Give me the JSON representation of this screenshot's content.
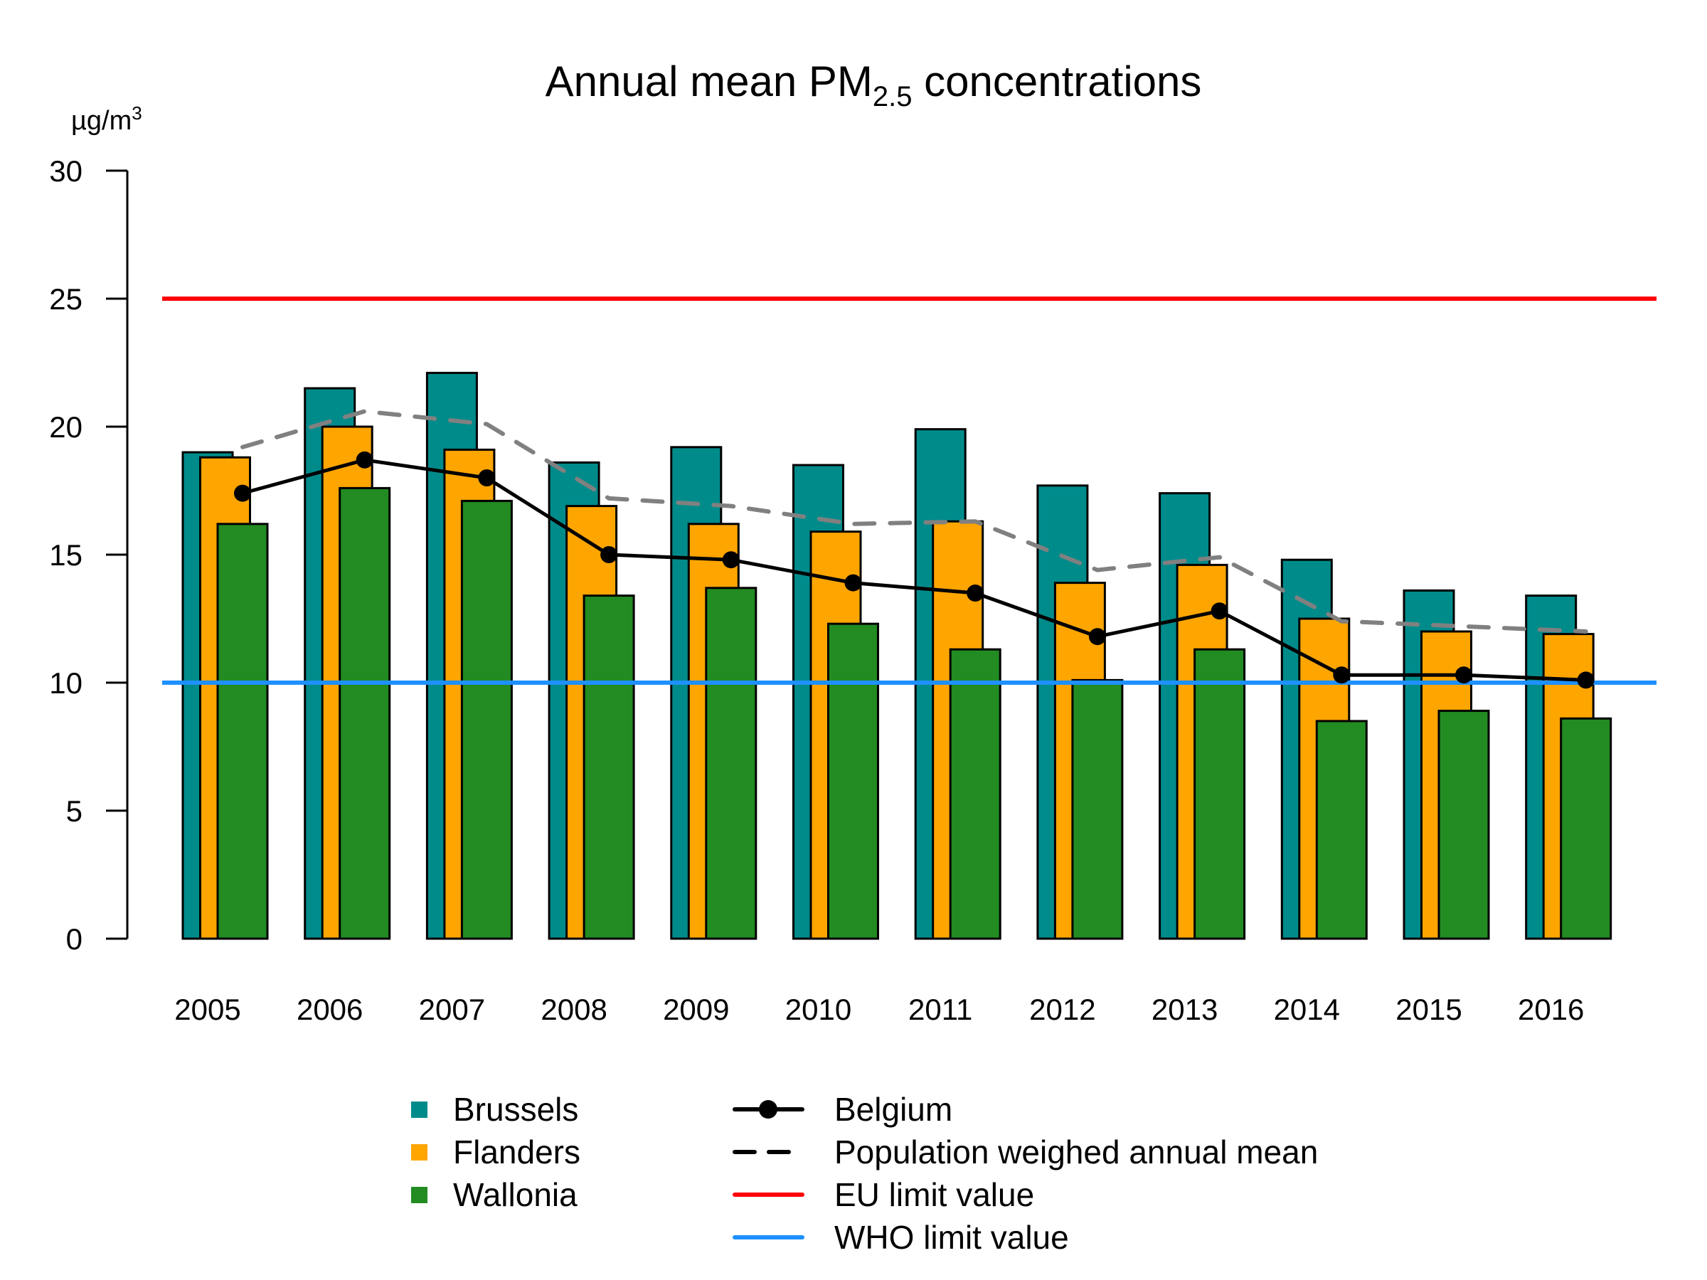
{
  "chart_data": {
    "type": "bar",
    "title": "Annual mean PM2.5 concentrations",
    "title_parts": {
      "main": "Annual mean PM",
      "subscript": "2.5",
      "rest": " concentrations"
    },
    "xlabel": "",
    "ylabel": "µg/m³",
    "ylabel_parts": {
      "base": "µg/m",
      "sup": "3"
    },
    "ylim": [
      0,
      30
    ],
    "yticks": [
      0,
      5,
      10,
      15,
      20,
      25,
      30
    ],
    "grid": false,
    "legend_position": "bottom",
    "categories": [
      "2005",
      "2006",
      "2007",
      "2008",
      "2009",
      "2010",
      "2011",
      "2012",
      "2013",
      "2014",
      "2015",
      "2016"
    ],
    "series": [
      {
        "name": "Brussels",
        "kind": "bar",
        "color": "#008B8B",
        "values": [
          19.0,
          21.5,
          22.1,
          18.6,
          19.2,
          18.5,
          19.9,
          17.7,
          17.4,
          14.8,
          13.6,
          13.4
        ]
      },
      {
        "name": "Flanders",
        "kind": "bar",
        "color": "#FFA500",
        "values": [
          18.8,
          20.0,
          19.1,
          16.9,
          16.2,
          15.9,
          16.3,
          13.9,
          14.6,
          12.5,
          12.0,
          11.9
        ]
      },
      {
        "name": "Wallonia",
        "kind": "bar",
        "color": "#228B22",
        "values": [
          16.2,
          17.6,
          17.1,
          13.4,
          13.7,
          12.3,
          11.3,
          10.1,
          11.3,
          8.5,
          8.9,
          8.6
        ]
      },
      {
        "name": "Belgium",
        "kind": "line-marker",
        "color": "#000000",
        "values": [
          17.4,
          18.7,
          18.0,
          15.0,
          14.8,
          13.9,
          13.5,
          11.8,
          12.8,
          10.3,
          10.3,
          10.1
        ]
      },
      {
        "name": "Population weighed annual mean",
        "kind": "dashed-line",
        "color": "#808080",
        "legend_color": "#000000",
        "values": [
          19.2,
          20.6,
          20.1,
          17.2,
          16.9,
          16.2,
          16.3,
          14.4,
          14.9,
          12.4,
          12.2,
          12.0
        ]
      }
    ],
    "reference_lines": [
      {
        "name": "EU limit value",
        "value": 25,
        "color": "#FF0000"
      },
      {
        "name": "WHO limit value",
        "value": 10,
        "color": "#1E90FF"
      }
    ],
    "legend": {
      "left": [
        "Brussels",
        "Flanders",
        "Wallonia"
      ],
      "right": [
        "Belgium",
        "Population weighed annual mean",
        "EU limit value",
        "WHO limit value"
      ]
    }
  }
}
